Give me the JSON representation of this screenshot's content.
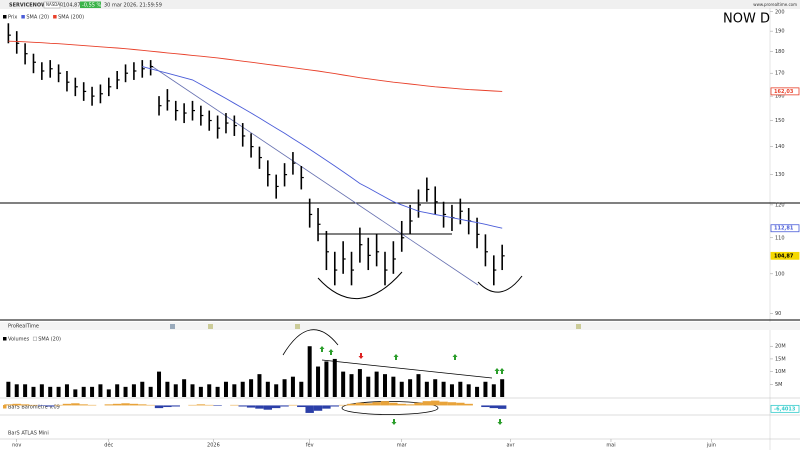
{
  "header": {
    "symbol": "SERVICENOW",
    "exchange": "NASDAQ",
    "last": "104,87",
    "change": "-0,55 %",
    "datetime": "30 mar 2026, 21:59:59",
    "site": "www.prorealtime.com"
  },
  "toolbar": "ProRealTime",
  "footer_panel": "BarS ATLAS Mini",
  "chart_data": [
    {
      "type": "ohlc",
      "title": "NOW  D",
      "log_scale": true,
      "ylim": [
        88.5,
        202
      ],
      "xlim": [
        -1,
        91
      ],
      "yticks": [
        90,
        100,
        110,
        120,
        130,
        140,
        150,
        160,
        170,
        180,
        190,
        200
      ],
      "series": [
        {
          "name": "Prix",
          "color": "#000000",
          "high": [
            194,
            190,
            184,
            179,
            175,
            176,
            174,
            171,
            168,
            166,
            164,
            165,
            168,
            171,
            174,
            175,
            176,
            176,
            160,
            163,
            158,
            157,
            158,
            156,
            154,
            152,
            153,
            152,
            149,
            145,
            140,
            135,
            130,
            134,
            138,
            133,
            122,
            119,
            112,
            106,
            109,
            106,
            113,
            110,
            111,
            106,
            109,
            115,
            120,
            125,
            129,
            126,
            121,
            120,
            122,
            119,
            116,
            111,
            105,
            108
          ],
          "low": [
            184,
            179,
            174,
            170,
            167,
            168,
            166,
            162,
            160,
            158,
            156,
            157,
            160,
            163,
            166,
            167,
            168,
            169,
            152,
            154,
            150,
            149,
            150,
            148,
            146,
            143,
            145,
            144,
            140,
            136,
            132,
            126,
            122,
            126,
            130,
            125,
            113,
            109,
            101,
            97,
            100,
            97,
            103,
            101,
            102,
            97,
            100,
            106,
            111,
            116,
            121,
            117,
            113,
            112,
            114,
            111,
            107,
            102,
            97,
            101
          ],
          "close": [
            188,
            184,
            179,
            175,
            171,
            172,
            170,
            166,
            164,
            162,
            160,
            161,
            164,
            167,
            170,
            171,
            172,
            173,
            156,
            158,
            154,
            153,
            154,
            152,
            150,
            147,
            149,
            148,
            144,
            140,
            136,
            130,
            126,
            130,
            134,
            129,
            117,
            114,
            106,
            101,
            104,
            101,
            108,
            105,
            106,
            101,
            104,
            110,
            115,
            120,
            125,
            121,
            117,
            116,
            118,
            115,
            111,
            106,
            101,
            104.87
          ]
        },
        {
          "name": "SMA (20)",
          "color": "#4a5cd8",
          "values": [
            null,
            null,
            null,
            null,
            null,
            null,
            null,
            null,
            null,
            null,
            null,
            null,
            null,
            null,
            null,
            null,
            173,
            172,
            171,
            170,
            169,
            168,
            167,
            165,
            163,
            161,
            159,
            157,
            155,
            153,
            151,
            149,
            147,
            145,
            143,
            141,
            139,
            137,
            135,
            133,
            131,
            129,
            127,
            125.5,
            124,
            122.5,
            121,
            120,
            119,
            118,
            117.5,
            117,
            116.5,
            116,
            115.5,
            115,
            114.5,
            114,
            113.4,
            112.81
          ]
        },
        {
          "name": "SMA (200)",
          "color": "#e8402a",
          "values": [
            185,
            184.9,
            184.7,
            184.5,
            184.3,
            184,
            183.8,
            183.5,
            183.2,
            182.9,
            182.6,
            182.3,
            182,
            181.7,
            181.4,
            181,
            180.6,
            180.2,
            179.8,
            179.4,
            179,
            178.6,
            178.2,
            177.8,
            177.4,
            177,
            176.5,
            176,
            175.5,
            175,
            174.5,
            174,
            173.5,
            173,
            172.5,
            172,
            171.5,
            171,
            170.4,
            169.8,
            169.2,
            168.6,
            168,
            167.5,
            167,
            166.5,
            166,
            165.6,
            165.2,
            164.8,
            164.4,
            164,
            163.7,
            163.4,
            163.1,
            162.8,
            162.6,
            162.4,
            162.2,
            162.03
          ]
        }
      ],
      "markers": [
        {
          "value": 162.03,
          "label": "162,03",
          "color": "#e8402a"
        },
        {
          "value": 112.81,
          "label": "112,81",
          "color": "#4a5cd8"
        },
        {
          "value": 104.87,
          "label": "104,87",
          "color": "#f5d800"
        }
      ]
    },
    {
      "type": "bar",
      "ylim": [
        0,
        26
      ],
      "xlim": [
        -1,
        91
      ],
      "yticks": [
        {
          "value": 5,
          "label": "5M"
        },
        {
          "value": 10,
          "label": "10M"
        },
        {
          "value": 15,
          "label": "15M"
        },
        {
          "value": 20,
          "label": "20M"
        }
      ],
      "legend_extra": "SMA (20)",
      "series": [
        {
          "name": "Volumes",
          "color": "#000000",
          "values": [
            6,
            5,
            5,
            4,
            5,
            4,
            4,
            5,
            3,
            4,
            4,
            5,
            3,
            5,
            4,
            5,
            6,
            4,
            10,
            6,
            5,
            7,
            5,
            4,
            5,
            4,
            6,
            5,
            6,
            7,
            9,
            6,
            5,
            7,
            8,
            6,
            20,
            12,
            14,
            15,
            10,
            9,
            11,
            8,
            10,
            9,
            8,
            6,
            7,
            9,
            6,
            7,
            6,
            5,
            6,
            5,
            4,
            6,
            5,
            7
          ]
        }
      ]
    },
    {
      "type": "oscillator",
      "ylim": [
        -16,
        12
      ],
      "xlim": [
        -1,
        91
      ],
      "series": [
        {
          "name": "BarS Baromètre v.09",
          "color": "#e8a33a",
          "negative_color": "#2b3fa8",
          "values": [
            2,
            3,
            2,
            1,
            -1,
            -2,
            1,
            3,
            4,
            2,
            1,
            0,
            2,
            3,
            4,
            3,
            2,
            1,
            -5,
            -3,
            -2,
            0,
            1,
            2,
            1,
            -1,
            0,
            1,
            -2,
            -4,
            -6,
            -8,
            -5,
            -2,
            1,
            -3,
            -14,
            -10,
            -6,
            -2,
            1,
            3,
            5,
            4,
            6,
            8,
            5,
            3,
            2,
            5,
            8,
            9,
            7,
            6,
            5,
            3,
            0,
            -3,
            -5,
            -6.4013
          ]
        }
      ],
      "markers": [
        {
          "value": -6.4013,
          "label": "-6,4013",
          "color": "#33cccc"
        }
      ],
      "xticks": [
        {
          "value": 1,
          "label": "nov"
        },
        {
          "value": 12,
          "label": "déc"
        },
        {
          "value": 24.5,
          "label": "2026"
        },
        {
          "value": 36,
          "label": "fév"
        },
        {
          "value": 47,
          "label": "mar"
        },
        {
          "value": 60,
          "label": "avr"
        },
        {
          "value": 72,
          "label": "mai"
        },
        {
          "value": 84,
          "label": "juin"
        }
      ]
    }
  ]
}
